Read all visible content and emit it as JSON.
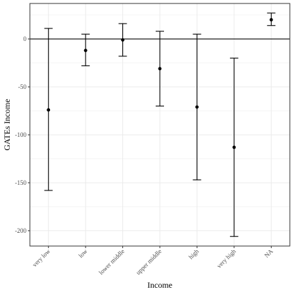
{
  "chart_data": {
    "type": "errorbar",
    "xlabel": "Income",
    "ylabel": "GATEs Income",
    "categories": [
      "very low",
      "low",
      "lower middle",
      "upper middle",
      "high",
      "very high",
      "NA"
    ],
    "estimates": [
      -74,
      -12,
      -1,
      -31,
      -71,
      -113,
      20
    ],
    "lower": [
      -158,
      -28,
      -18,
      -70,
      -147,
      -206,
      14
    ],
    "upper": [
      11,
      5,
      16,
      8,
      5,
      -20,
      27
    ],
    "ylim": [
      -216,
      37
    ],
    "yticks": [
      0,
      -50,
      -100,
      -150,
      -200
    ],
    "ytick_labels": [
      "0",
      "-50",
      "-100",
      "-150",
      "-200"
    ],
    "reference_line": 0,
    "grid": true,
    "colors": {
      "mark": "#000000",
      "grid": "#ebebeb",
      "panel_border": "#333333"
    }
  }
}
